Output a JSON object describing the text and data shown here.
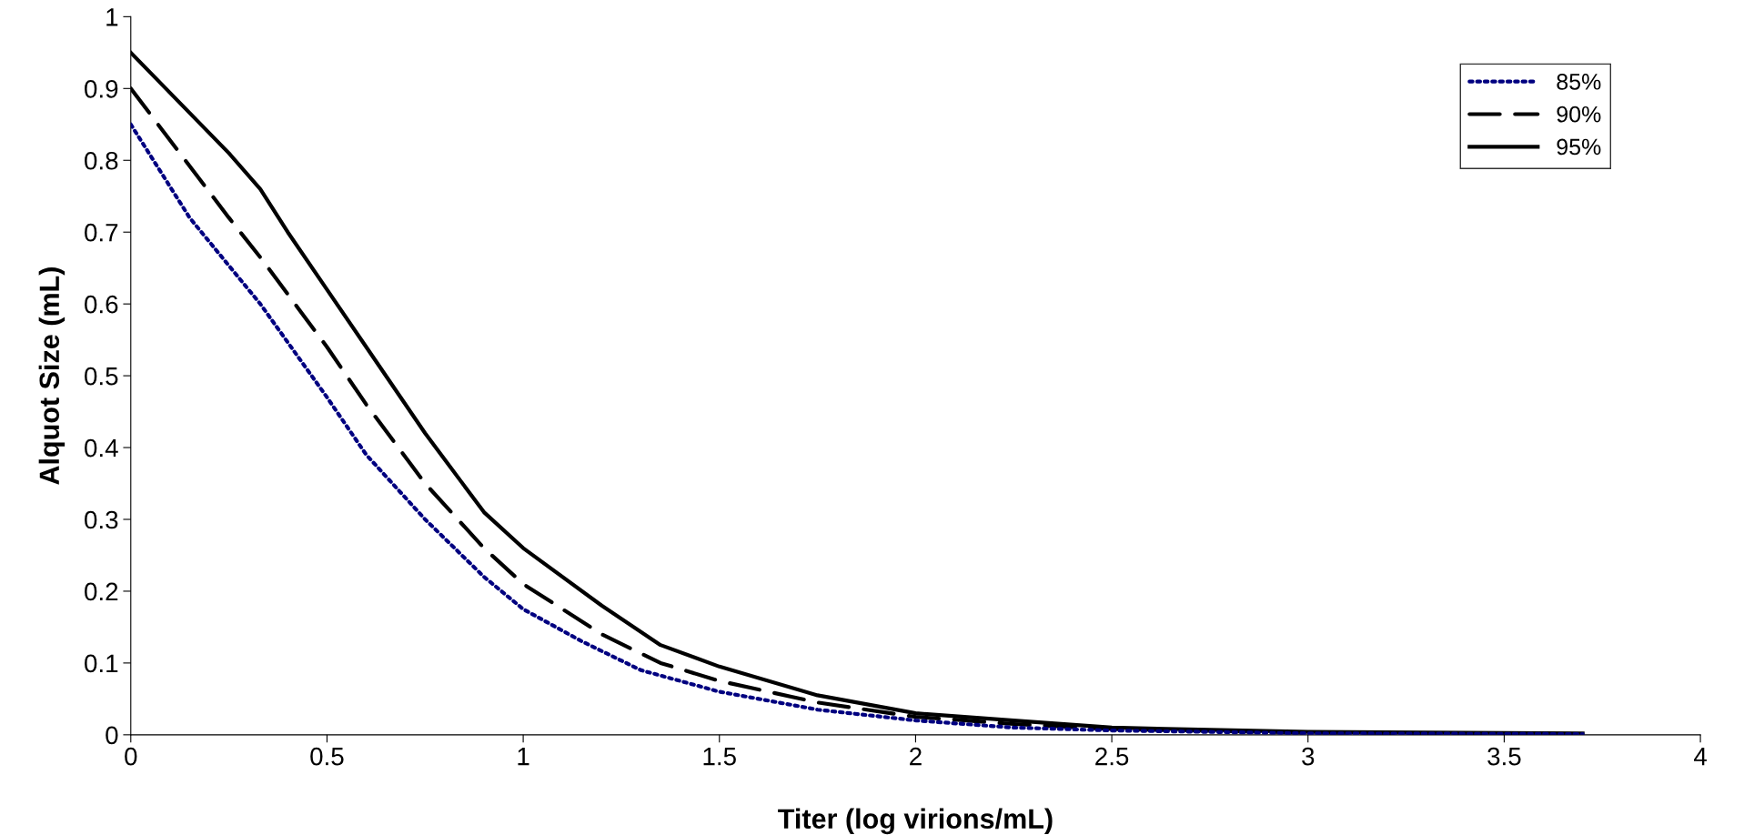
{
  "chart_data": {
    "type": "line",
    "xlabel": "Titer (log virions/mL)",
    "ylabel": "Alquot Size (mL)",
    "xlim": [
      0,
      4
    ],
    "xticks": [
      0,
      0.5,
      1,
      1.5,
      2,
      2.5,
      3,
      3.5,
      4
    ],
    "ylim": [
      0,
      1
    ],
    "yticks": [
      0,
      0.1,
      0.2,
      0.3,
      0.4,
      0.5,
      0.6,
      0.7,
      0.8,
      0.9,
      1
    ],
    "grid": false,
    "legend": "top right",
    "marker": "none",
    "series": [
      {
        "name": "85%",
        "color": "#000080",
        "line_style": "dotted",
        "x": [
          0,
          0.15,
          0.33,
          0.5,
          0.6,
          0.75,
          0.9,
          1.0,
          1.15,
          1.3,
          1.5,
          1.75,
          2.0,
          2.25,
          2.5,
          3.0,
          3.7
        ],
        "values": [
          0.85,
          0.72,
          0.6,
          0.47,
          0.39,
          0.3,
          0.22,
          0.175,
          0.13,
          0.09,
          0.06,
          0.035,
          0.02,
          0.01,
          0.006,
          0.002,
          0.001
        ]
      },
      {
        "name": "90%",
        "color": "#000000",
        "line_style": "dashed",
        "x": [
          0,
          0.25,
          0.33,
          0.5,
          0.6,
          0.75,
          0.9,
          1.0,
          1.2,
          1.35,
          1.5,
          1.75,
          2.0,
          2.25,
          2.5,
          3.0,
          3.7
        ],
        "values": [
          0.9,
          0.72,
          0.665,
          0.54,
          0.46,
          0.35,
          0.26,
          0.21,
          0.14,
          0.1,
          0.075,
          0.045,
          0.025,
          0.015,
          0.008,
          0.003,
          0.001
        ]
      },
      {
        "name": "95%",
        "color": "#000000",
        "line_style": "solid",
        "x": [
          0,
          0.25,
          0.33,
          0.4,
          0.5,
          0.6,
          0.75,
          0.9,
          1.0,
          1.2,
          1.35,
          1.5,
          1.75,
          2.0,
          2.25,
          2.5,
          2.75,
          3.0,
          3.7
        ],
        "values": [
          0.95,
          0.81,
          0.76,
          0.7,
          0.62,
          0.54,
          0.42,
          0.31,
          0.26,
          0.18,
          0.125,
          0.095,
          0.055,
          0.03,
          0.02,
          0.01,
          0.007,
          0.004,
          0.002
        ]
      }
    ]
  }
}
